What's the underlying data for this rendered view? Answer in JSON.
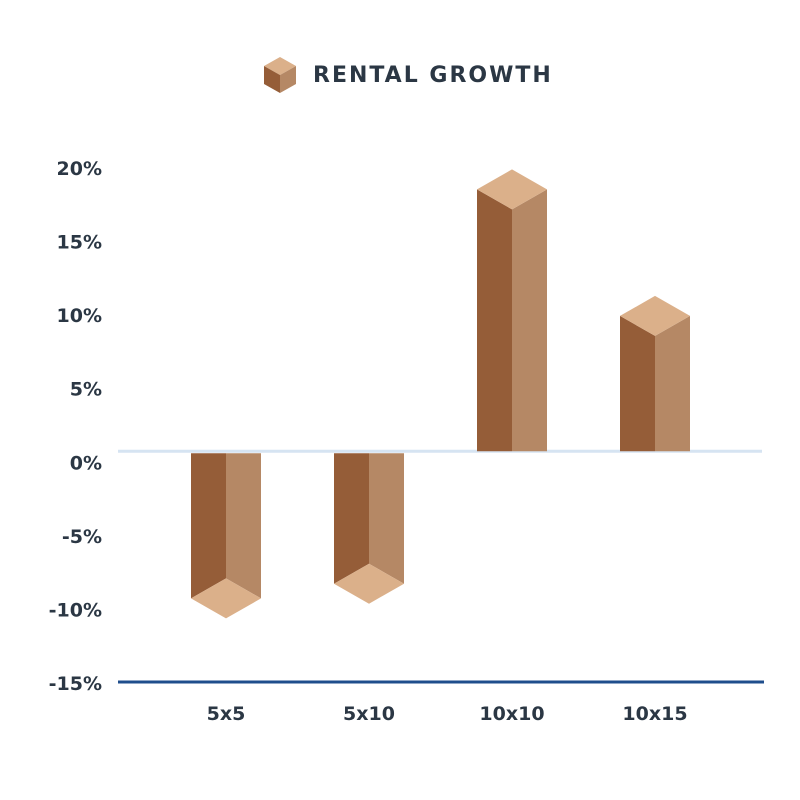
{
  "colors": {
    "face_front": "#955d38",
    "face_side": "#b58865",
    "face_cap": "#dbb08a",
    "zero_line": "#d6e4f2",
    "baseline": "#1f4e8c",
    "text": "#2b3744"
  },
  "chart_data": {
    "type": "bar",
    "title": "RENTAL GROWTH",
    "title_icon": "cube-icon",
    "categories": [
      "5x5",
      "5x10",
      "10x10",
      "10x15"
    ],
    "values": [
      -10,
      -9,
      17.8,
      9.2
    ],
    "yticks": [
      "20%",
      "15%",
      "10%",
      "5%",
      "0%",
      "-5%",
      "-10%",
      "-15%"
    ],
    "ylim": [
      -15,
      20
    ],
    "grid": false,
    "legend": "none"
  }
}
